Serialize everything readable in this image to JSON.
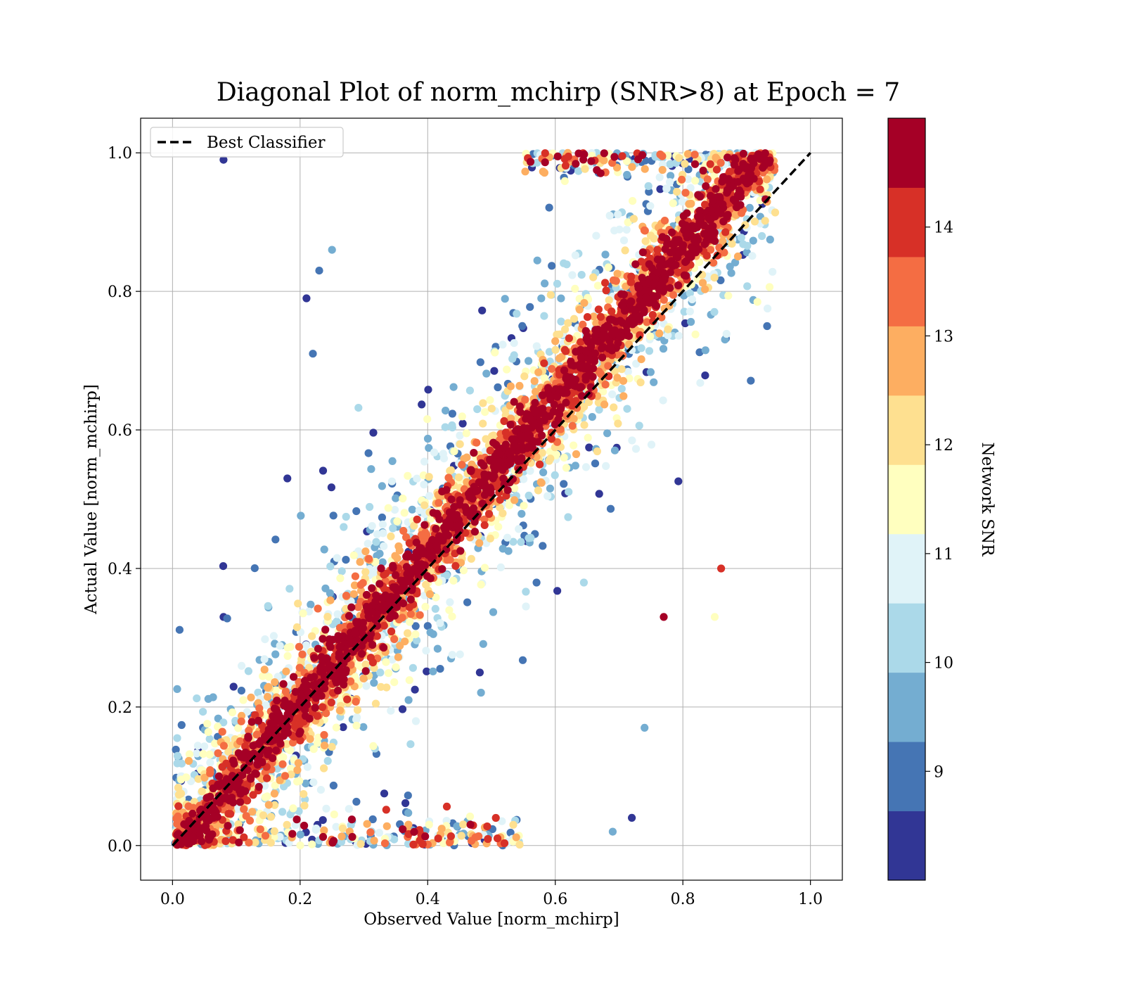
{
  "chart_data": {
    "type": "scatter",
    "title": "Diagonal Plot of norm_mchirp (SNR>8) at Epoch = 7",
    "xlabel": "Observed Value [norm_mchirp]",
    "ylabel": "Actual Value [norm_mchirp]",
    "xlim": [
      -0.05,
      1.05
    ],
    "ylim": [
      -0.05,
      1.05
    ],
    "x_ticks": [
      "0.0",
      "0.2",
      "0.4",
      "0.6",
      "0.8",
      "1.0"
    ],
    "y_ticks": [
      "0.0",
      "0.2",
      "0.4",
      "0.6",
      "0.8",
      "1.0"
    ],
    "grid": true,
    "legend": {
      "placement": "top-left",
      "entries": [
        "Best Classifier"
      ]
    },
    "reference_line": {
      "name": "Best Classifier",
      "style": "dashed",
      "color": "#000000",
      "x": [
        0,
        1
      ],
      "y": [
        0,
        1
      ]
    },
    "colorbar": {
      "label": "Network SNR",
      "range": [
        8,
        15
      ],
      "ticks": [
        "9",
        "10",
        "11",
        "12",
        "13",
        "14"
      ],
      "colors": [
        "#313695",
        "#4575b4",
        "#74add1",
        "#abd9e9",
        "#e0f3f8",
        "#ffffbf",
        "#fee090",
        "#fdae61",
        "#f46d43",
        "#d73027",
        "#a50026"
      ]
    },
    "series": {
      "description_points": "dense scatter of predictions around the diagonal, colored by SNR",
      "sample_points": [
        {
          "x": 0.08,
          "y": 0.99,
          "snr": 8.2
        },
        {
          "x": 0.21,
          "y": 0.79,
          "snr": 8.5
        },
        {
          "x": 0.22,
          "y": 0.71,
          "snr": 9.2
        },
        {
          "x": 0.23,
          "y": 0.83,
          "snr": 9.0
        },
        {
          "x": 0.25,
          "y": 0.86,
          "snr": 9.3
        },
        {
          "x": 0.08,
          "y": 0.33,
          "snr": 8.4
        },
        {
          "x": 0.18,
          "y": 0.53,
          "snr": 8.3
        },
        {
          "x": 0.69,
          "y": 0.02,
          "snr": 9.6
        },
        {
          "x": 0.72,
          "y": 0.04,
          "snr": 8.3
        },
        {
          "x": 0.85,
          "y": 0.33,
          "snr": 11.5
        },
        {
          "x": 0.86,
          "y": 0.4,
          "snr": 13.8
        },
        {
          "x": 0.74,
          "y": 0.17,
          "snr": 9.5
        },
        {
          "x": 0.77,
          "y": 0.33,
          "snr": 14.5
        }
      ]
    }
  }
}
